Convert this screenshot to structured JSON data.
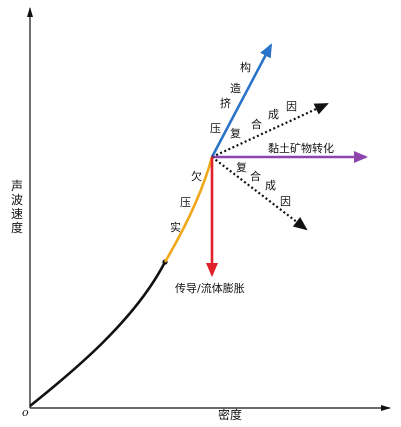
{
  "axes": {
    "x_label": "密度",
    "y_label": [
      "声",
      "波",
      "速",
      "度"
    ],
    "origin_label": "o"
  },
  "labels": {
    "undercompaction": [
      "欠",
      "压",
      "实"
    ],
    "tectonic_compression": [
      "构",
      "造",
      "挤",
      "压"
    ],
    "composite_cause_upper": [
      "复",
      "合",
      "成",
      "因"
    ],
    "composite_cause_lower": [
      "复",
      "合",
      "成",
      "因"
    ],
    "clay_mineral_transformation": "黏土矿物转化",
    "transfer_fluid_expansion": "传导/流体膨胀"
  },
  "colors": {
    "axis": "#111111",
    "normal_compaction": "#111111",
    "undercompaction": "#f0a71a",
    "tectonic_compression": "#2a73c8",
    "composite_cause": "#111111",
    "clay_mineral_transformation": "#8e44ad",
    "transfer_fluid_expansion": "#e0202a"
  }
}
